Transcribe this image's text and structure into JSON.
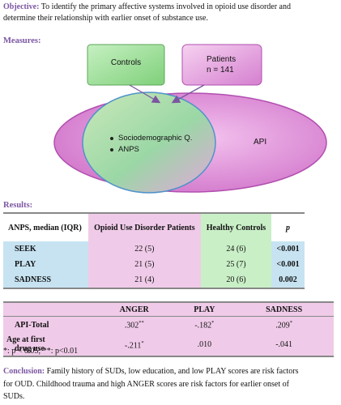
{
  "objective": {
    "label": "Objective:",
    "line1": "To identify the primary affective systems involved in opioid use disorder and",
    "line2": "determine their relationship with earlier onset of substance use."
  },
  "measures": {
    "heading": "Measures:",
    "controls_box": "Controls",
    "patients_box_line1": "Patients",
    "patients_box_line2": "n = 141",
    "bullet1": "Sociodemographic Q.",
    "bullet2": "ANPS",
    "api_label": "API",
    "colors": {
      "controls_fill": "#8ed98a",
      "patients_fill": "#e9a6e2",
      "api_fill": "#dc86d6",
      "inner_fill": "#9fd6b3"
    }
  },
  "results": {
    "heading": "Results:",
    "table1": {
      "headers": [
        "ANPS, median (IQR)",
        "Opioid Use Disorder Patients",
        "Healthy Controls",
        "p"
      ],
      "rows": [
        [
          "SEEK",
          "22 (5)",
          "24 (6)",
          "<0.001"
        ],
        [
          "PLAY",
          "21 (5)",
          "25 (7)",
          "<0.001"
        ],
        [
          "SADNESS",
          "21 (4)",
          "20 (6)",
          "0.002"
        ]
      ]
    },
    "table2": {
      "headers": [
        "",
        "ANGER",
        "PLAY",
        "SADNESS"
      ],
      "row1": {
        "label": "API-Total",
        "anger": ".302",
        "anger_sup": "**",
        "play": "-.182",
        "play_sup": "*",
        "sadness": ".209",
        "sadness_sup": "*"
      },
      "row2": {
        "label_line1": "Age at first",
        "label_line2": "drug use",
        "anger": "-.211",
        "anger_sup": "*",
        "play": ".010",
        "sadness": "-.041"
      }
    },
    "footnote": "*: p < 0.05; **: p<0.01"
  },
  "conclusion": {
    "label": "Conclusion:",
    "line1": "Family history of SUDs, low education, and low PLAY scores are risk factors",
    "line2": "for OUD. Childhood trauma and high ANGER scores are risk factors for earlier onset of",
    "line3": "SUDs."
  }
}
